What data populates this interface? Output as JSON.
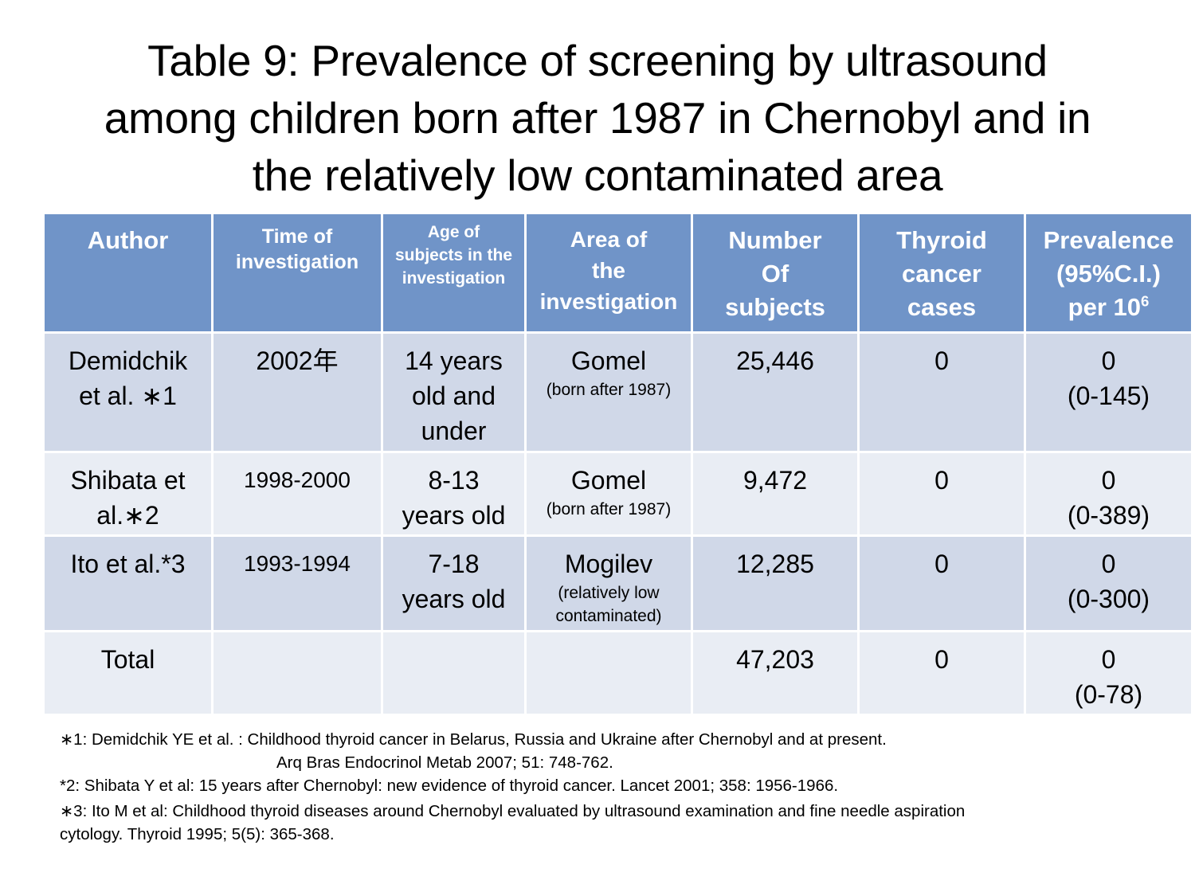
{
  "title": {
    "line1": "Table 9: Prevalence of screening by ultrasound",
    "line2": "among children born after 1987 in Chernobyl and in",
    "line3": "the relatively low contaminated area"
  },
  "headers": {
    "author": "Author",
    "time": {
      "l1": "Time of",
      "l2": "investigation"
    },
    "age": {
      "l1": "Age of",
      "l2": "subjects in the",
      "l3": "investigation"
    },
    "area": {
      "l1": "Area of",
      "l2": "the",
      "l3": "investigation"
    },
    "number": {
      "l1": "Number",
      "l2": "Of",
      "l3": "subjects"
    },
    "thyroid": {
      "l1": "Thyroid",
      "l2": "cancer",
      "l3": "cases"
    },
    "prevalence": {
      "l1": "Prevalence",
      "l2": "(95%C.I.)",
      "l3": "per 10",
      "sup": "6"
    }
  },
  "rows": [
    {
      "author": {
        "l1": "Demidchik",
        "l2": "et al. ∗1"
      },
      "time": "2002年",
      "age": {
        "l1": "14 years",
        "l2": "old and",
        "l3": "under"
      },
      "area": {
        "main": "Gomel",
        "sub1": "(born after 1987)"
      },
      "number": "25,446",
      "cases": "0",
      "prevalence": {
        "value": "0",
        "ci": "(0-145)"
      }
    },
    {
      "author": {
        "l1": "Shibata et",
        "l2": "al.∗2"
      },
      "time": "1998-2000",
      "age": {
        "l1": "8-13",
        "l2": "years old"
      },
      "area": {
        "main": "Gomel",
        "sub1": "(born after 1987)"
      },
      "number": "9,472",
      "cases": "0",
      "prevalence": {
        "value": "0",
        "ci": "(0-389)"
      }
    },
    {
      "author": {
        "l1": "Ito et al.*3"
      },
      "time": "1993-1994",
      "age": {
        "l1": "7-18",
        "l2": "years old"
      },
      "area": {
        "main": "Mogilev",
        "sub1": "(relatively low",
        "sub2": "contaminated)"
      },
      "number": "12,285",
      "cases": "0",
      "prevalence": {
        "value": "0",
        "ci": "(0-300)"
      }
    },
    {
      "author": {
        "l1": "Total"
      },
      "number": "47,203",
      "cases": "0",
      "prevalence": {
        "value": "0",
        "ci": "(0-78)"
      }
    }
  ],
  "notes": {
    "n1a": "∗1: Demidchik YE et al. : Childhood thyroid cancer in Belarus, Russia and Ukraine after Chernobyl and at present.",
    "n1b": "Arq Bras Endocrinol Metab 2007; 51: 748-762.",
    "n2": "*2: Shibata Y et al: 15 years after Chernobyl: new evidence of thyroid cancer. Lancet 2001; 358: 1956-1966.",
    "n3a": "∗3: Ito M et al: Childhood thyroid diseases around Chernobyl evaluated by ultrasound examination and fine needle aspiration",
    "n3b": "cytology. Thyroid 1995; 5(5): 365-368."
  }
}
